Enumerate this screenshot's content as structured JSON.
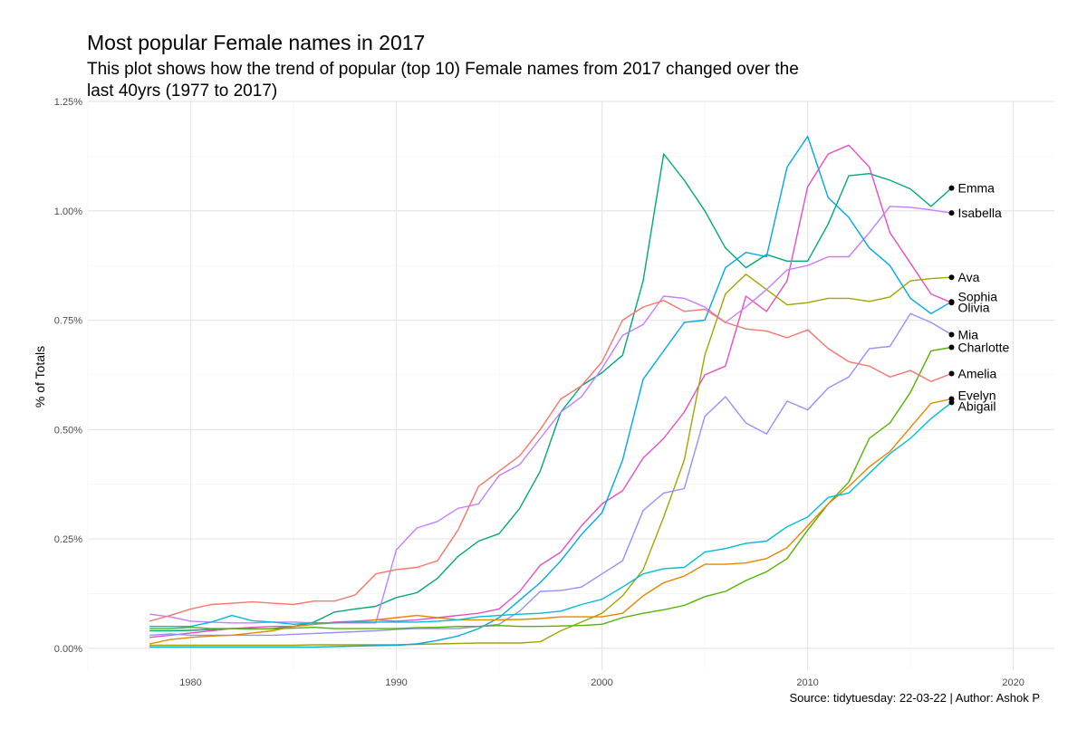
{
  "chart_data": {
    "type": "line",
    "title": "Most popular Female names in 2017",
    "subtitle": "This plot shows how the trend of popular (top 10) Female names from 2017 changed over the last 40yrs (1977 to 2017)",
    "xlabel": "",
    "ylabel": "% of Totals",
    "caption": "Source: tidytuesday: 22-03-22 | Author: Ashok P",
    "xlim": [
      1975,
      2022
    ],
    "ylim": [
      -0.05,
      1.25
    ],
    "x_ticks": [
      1980,
      1990,
      2000,
      2010,
      2020
    ],
    "y_ticks": [
      0,
      0.25,
      0.5,
      0.75,
      1.0,
      1.25
    ],
    "y_tick_labels": [
      "0.00%",
      "0.25%",
      "0.50%",
      "0.75%",
      "1.00%",
      "1.25%"
    ],
    "grid": true,
    "legend": "none (direct end labels)",
    "x": [
      1978,
      1979,
      1980,
      1981,
      1982,
      1983,
      1984,
      1985,
      1986,
      1987,
      1988,
      1989,
      1990,
      1991,
      1992,
      1993,
      1994,
      1995,
      1996,
      1997,
      1998,
      1999,
      2000,
      2001,
      2002,
      2003,
      2004,
      2005,
      2006,
      2007,
      2008,
      2009,
      2010,
      2011,
      2012,
      2013,
      2014,
      2015,
      2016,
      2017
    ],
    "series": [
      {
        "name": "Emma",
        "color": "#00A87A",
        "values": [
          0.04,
          0.04,
          0.041,
          0.043,
          0.045,
          0.044,
          0.045,
          0.05,
          0.06,
          0.083,
          0.09,
          0.096,
          0.116,
          0.127,
          0.16,
          0.21,
          0.245,
          0.262,
          0.32,
          0.405,
          0.54,
          0.6,
          0.63,
          0.67,
          0.84,
          1.13,
          1.07,
          1.0,
          0.915,
          0.87,
          0.9,
          0.885,
          0.885,
          0.97,
          1.08,
          1.085,
          1.07,
          1.05,
          1.01,
          1.052
        ]
      },
      {
        "name": "Olivia",
        "color": "#E54FC4",
        "values": [
          0.025,
          0.03,
          0.035,
          0.04,
          0.045,
          0.048,
          0.05,
          0.05,
          0.055,
          0.06,
          0.062,
          0.065,
          0.062,
          0.065,
          0.07,
          0.075,
          0.08,
          0.09,
          0.13,
          0.19,
          0.22,
          0.28,
          0.33,
          0.36,
          0.435,
          0.48,
          0.54,
          0.625,
          0.645,
          0.805,
          0.77,
          0.84,
          1.055,
          1.13,
          1.15,
          1.1,
          0.95,
          0.88,
          0.81,
          0.79
        ]
      },
      {
        "name": "Ava",
        "color": "#A3A500",
        "values": [
          0.007,
          0.007,
          0.007,
          0.007,
          0.007,
          0.007,
          0.007,
          0.007,
          0.008,
          0.008,
          0.008,
          0.008,
          0.008,
          0.009,
          0.01,
          0.011,
          0.012,
          0.012,
          0.012,
          0.015,
          0.04,
          0.06,
          0.08,
          0.12,
          0.18,
          0.3,
          0.43,
          0.67,
          0.81,
          0.855,
          0.82,
          0.785,
          0.79,
          0.8,
          0.8,
          0.793,
          0.803,
          0.84,
          0.845,
          0.848
        ]
      },
      {
        "name": "Isabella",
        "color": "#C77CFF",
        "values": [
          0.078,
          0.072,
          0.062,
          0.06,
          0.058,
          0.058,
          0.06,
          0.06,
          0.058,
          0.058,
          0.058,
          0.058,
          0.225,
          0.275,
          0.29,
          0.32,
          0.33,
          0.395,
          0.42,
          0.48,
          0.54,
          0.575,
          0.64,
          0.715,
          0.74,
          0.805,
          0.8,
          0.78,
          0.745,
          0.78,
          0.82,
          0.865,
          0.875,
          0.895,
          0.895,
          0.95,
          1.01,
          1.008,
          1.002,
          0.995
        ]
      },
      {
        "name": "Sophia",
        "color": "#00A9E6",
        "values": [
          0.003,
          0.003,
          0.003,
          0.003,
          0.003,
          0.003,
          0.003,
          0.003,
          0.003,
          0.004,
          0.005,
          0.006,
          0.007,
          0.01,
          0.018,
          0.028,
          0.045,
          0.07,
          0.11,
          0.15,
          0.2,
          0.26,
          0.31,
          0.43,
          0.615,
          0.68,
          0.745,
          0.75,
          0.87,
          0.905,
          0.895,
          1.1,
          1.17,
          1.03,
          0.985,
          0.915,
          0.875,
          0.8,
          0.765,
          0.792
        ]
      },
      {
        "name": "Mia",
        "color": "#9590FF",
        "values": [
          0.03,
          0.033,
          0.03,
          0.03,
          0.03,
          0.03,
          0.03,
          0.032,
          0.034,
          0.036,
          0.038,
          0.04,
          0.043,
          0.045,
          0.045,
          0.045,
          0.05,
          0.055,
          0.085,
          0.13,
          0.132,
          0.14,
          0.17,
          0.2,
          0.315,
          0.355,
          0.365,
          0.53,
          0.575,
          0.515,
          0.49,
          0.565,
          0.545,
          0.595,
          0.62,
          0.685,
          0.69,
          0.765,
          0.745,
          0.717
        ]
      },
      {
        "name": "Charlotte",
        "color": "#53B400",
        "values": [
          0.045,
          0.045,
          0.048,
          0.045,
          0.045,
          0.045,
          0.044,
          0.046,
          0.048,
          0.045,
          0.045,
          0.045,
          0.045,
          0.047,
          0.048,
          0.05,
          0.05,
          0.052,
          0.05,
          0.05,
          0.051,
          0.052,
          0.055,
          0.07,
          0.08,
          0.088,
          0.098,
          0.118,
          0.13,
          0.155,
          0.175,
          0.205,
          0.27,
          0.33,
          0.38,
          0.48,
          0.515,
          0.585,
          0.68,
          0.688
        ]
      },
      {
        "name": "Amelia",
        "color": "#F8766D",
        "values": [
          0.062,
          0.075,
          0.09,
          0.1,
          0.103,
          0.106,
          0.103,
          0.1,
          0.108,
          0.108,
          0.122,
          0.17,
          0.18,
          0.185,
          0.2,
          0.27,
          0.37,
          0.405,
          0.44,
          0.5,
          0.57,
          0.6,
          0.655,
          0.75,
          0.78,
          0.795,
          0.77,
          0.775,
          0.745,
          0.73,
          0.725,
          0.71,
          0.728,
          0.685,
          0.655,
          0.645,
          0.62,
          0.635,
          0.61,
          0.628
        ]
      },
      {
        "name": "Evelyn",
        "color": "#E58700",
        "values": [
          0.01,
          0.02,
          0.025,
          0.028,
          0.03,
          0.035,
          0.04,
          0.05,
          0.055,
          0.058,
          0.06,
          0.065,
          0.07,
          0.075,
          0.07,
          0.065,
          0.065,
          0.065,
          0.066,
          0.068,
          0.072,
          0.072,
          0.072,
          0.08,
          0.12,
          0.15,
          0.165,
          0.192,
          0.192,
          0.195,
          0.205,
          0.23,
          0.28,
          0.33,
          0.37,
          0.415,
          0.45,
          0.505,
          0.56,
          0.57
        ]
      },
      {
        "name": "Abigail",
        "color": "#00BCD8",
        "values": [
          0.05,
          0.05,
          0.05,
          0.06,
          0.075,
          0.063,
          0.06,
          0.055,
          0.058,
          0.058,
          0.06,
          0.06,
          0.06,
          0.06,
          0.062,
          0.065,
          0.072,
          0.075,
          0.078,
          0.08,
          0.085,
          0.1,
          0.112,
          0.14,
          0.17,
          0.182,
          0.185,
          0.22,
          0.228,
          0.24,
          0.245,
          0.278,
          0.3,
          0.345,
          0.355,
          0.4,
          0.445,
          0.48,
          0.525,
          0.562
        ]
      }
    ]
  }
}
